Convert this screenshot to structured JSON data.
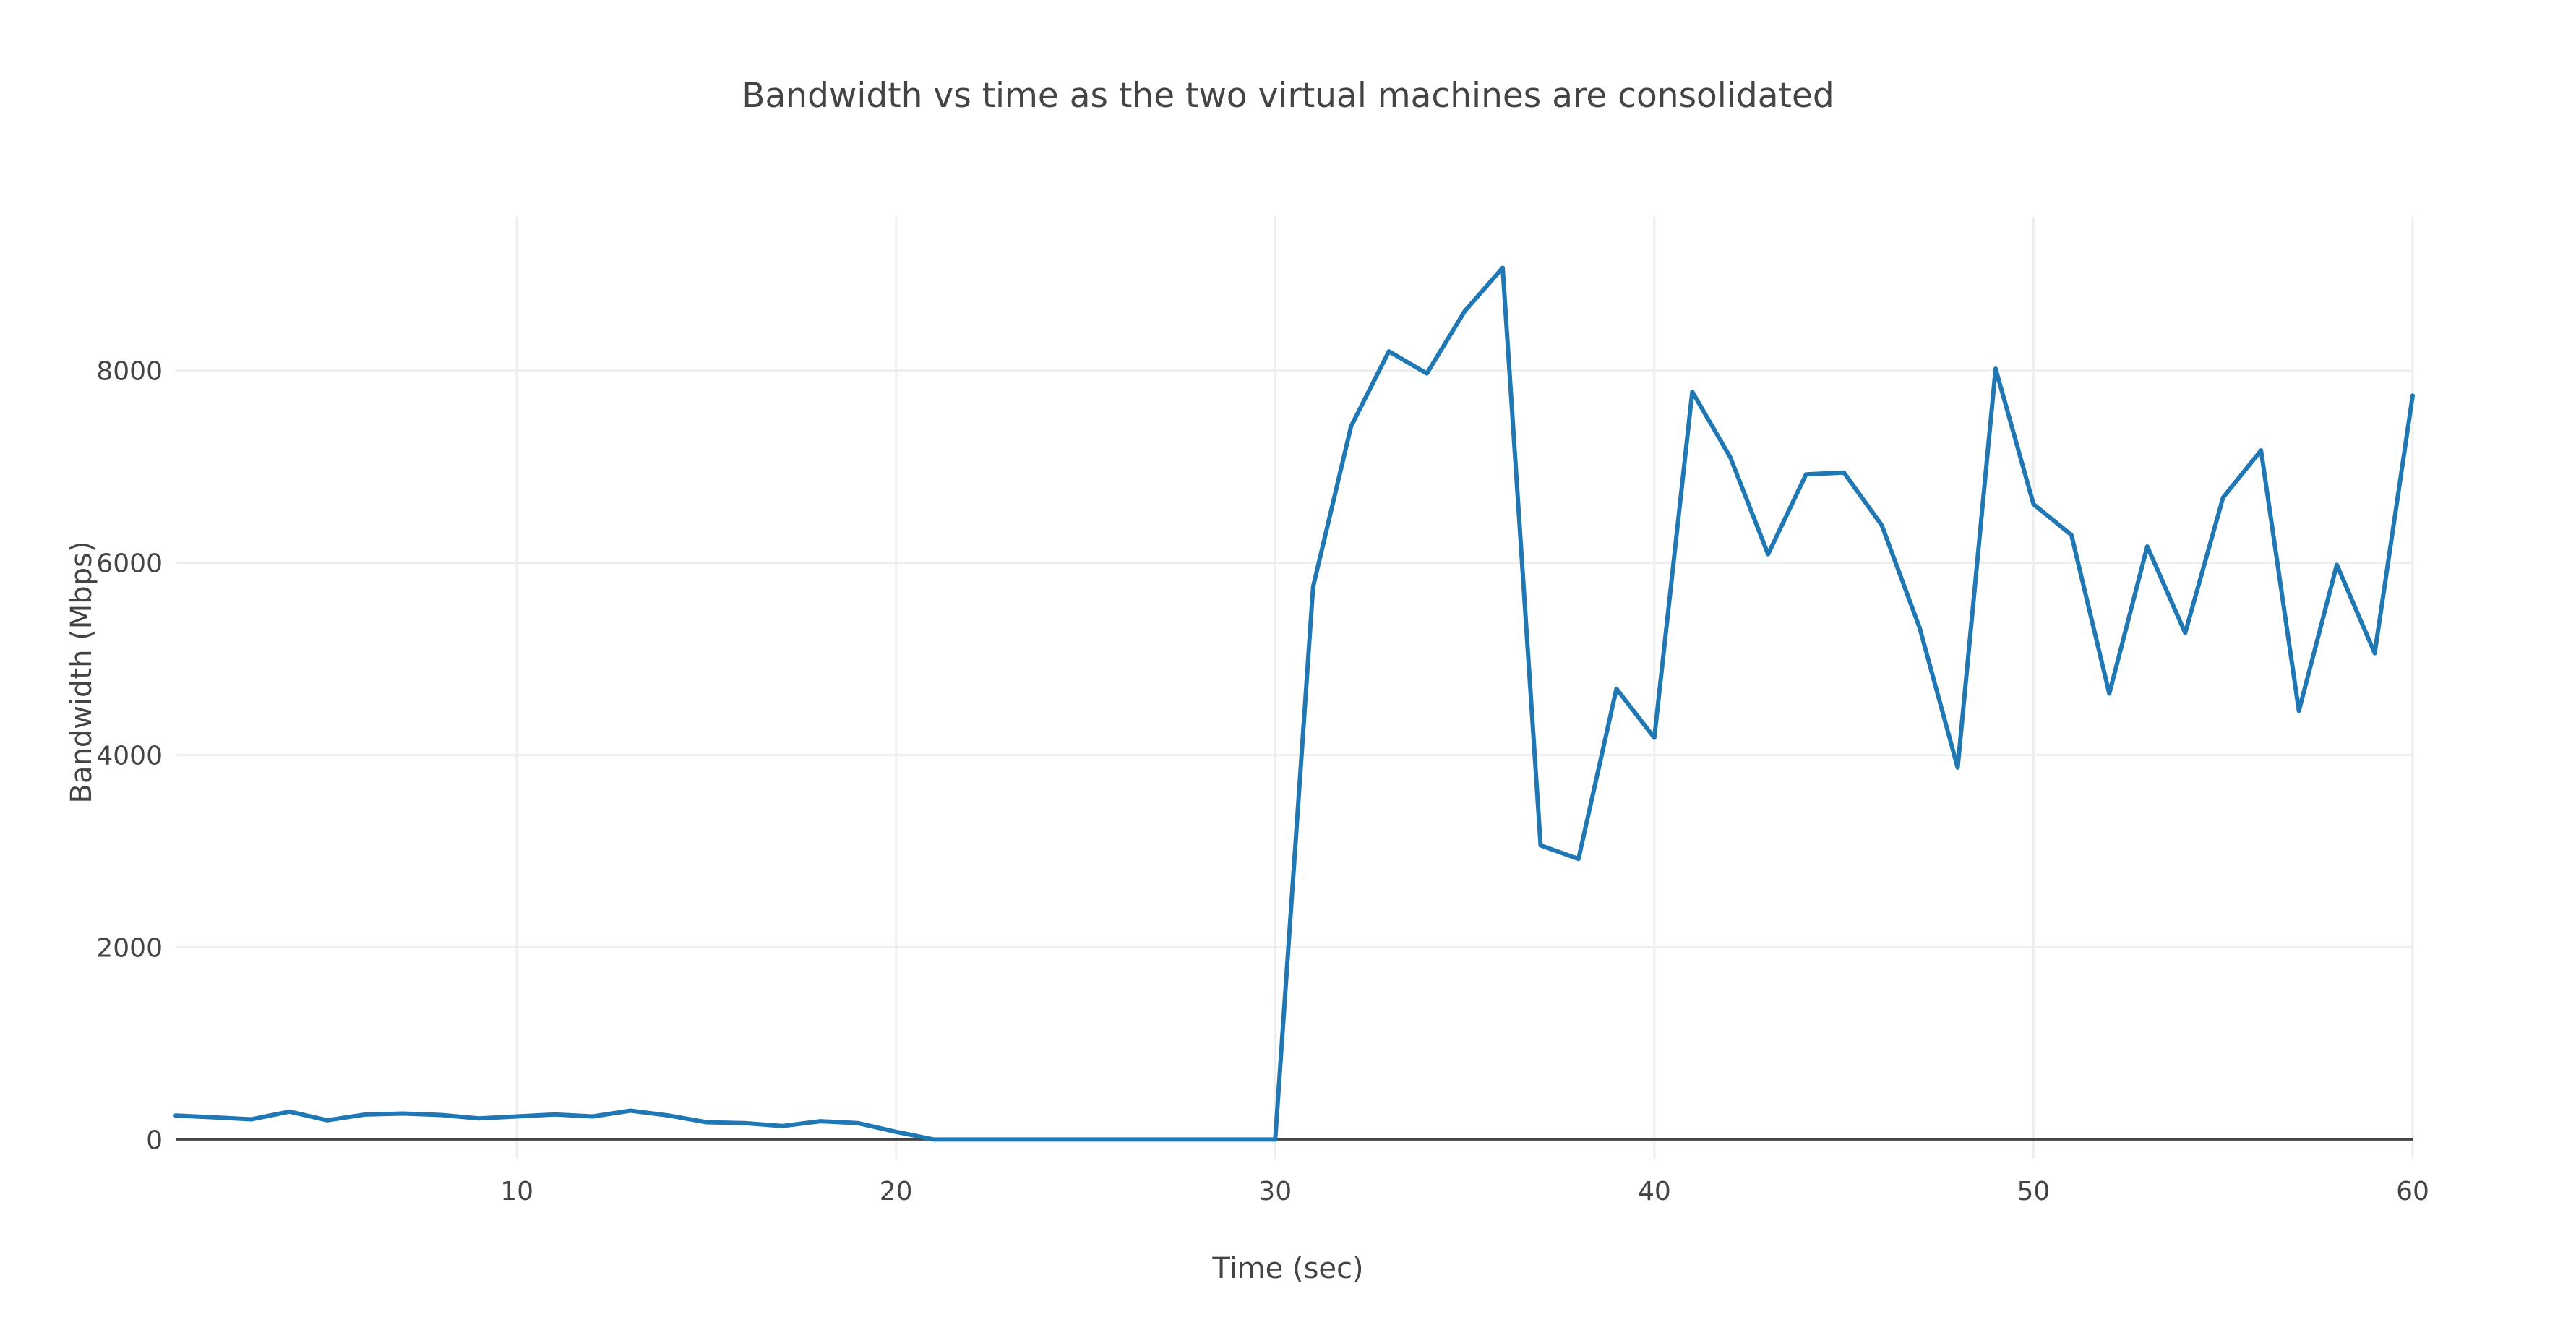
{
  "chart_data": {
    "type": "line",
    "title": "Bandwidth vs time as the two virtual machines are consolidated",
    "xlabel": "Time (sec)",
    "ylabel": "Bandwidth (Mbps)",
    "xlim": [
      1,
      60
    ],
    "ylim": [
      -200,
      9600
    ],
    "x_ticks": [
      10,
      20,
      30,
      40,
      50,
      60
    ],
    "y_ticks": [
      0,
      2000,
      4000,
      6000,
      8000
    ],
    "grid": true,
    "legend": "none",
    "series": [
      {
        "color": "#1f77b4",
        "x": [
          1,
          2,
          3,
          4,
          5,
          6,
          7,
          8,
          9,
          10,
          11,
          12,
          13,
          14,
          15,
          16,
          17,
          18,
          19,
          20,
          21,
          22,
          23,
          24,
          25,
          26,
          27,
          28,
          29,
          30,
          31,
          32,
          33,
          34,
          35,
          36,
          37,
          38,
          39,
          40,
          41,
          42,
          43,
          44,
          45,
          46,
          47,
          48,
          49,
          50,
          51,
          52,
          53,
          54,
          55,
          56,
          57,
          58,
          59,
          60
        ],
        "y": [
          250,
          230,
          210,
          290,
          200,
          260,
          270,
          255,
          220,
          240,
          260,
          240,
          300,
          250,
          180,
          170,
          140,
          190,
          170,
          80,
          0,
          0,
          0,
          0,
          0,
          0,
          0,
          0,
          0,
          0,
          5750,
          7420,
          8200,
          7970,
          8620,
          9070,
          3060,
          2920,
          4690,
          4180,
          7780,
          7100,
          6090,
          6920,
          6940,
          6390,
          5320,
          3870,
          8020,
          6610,
          6290,
          4640,
          6170,
          5270,
          6680,
          7170,
          4460,
          5980,
          5060,
          7740
        ]
      }
    ]
  }
}
